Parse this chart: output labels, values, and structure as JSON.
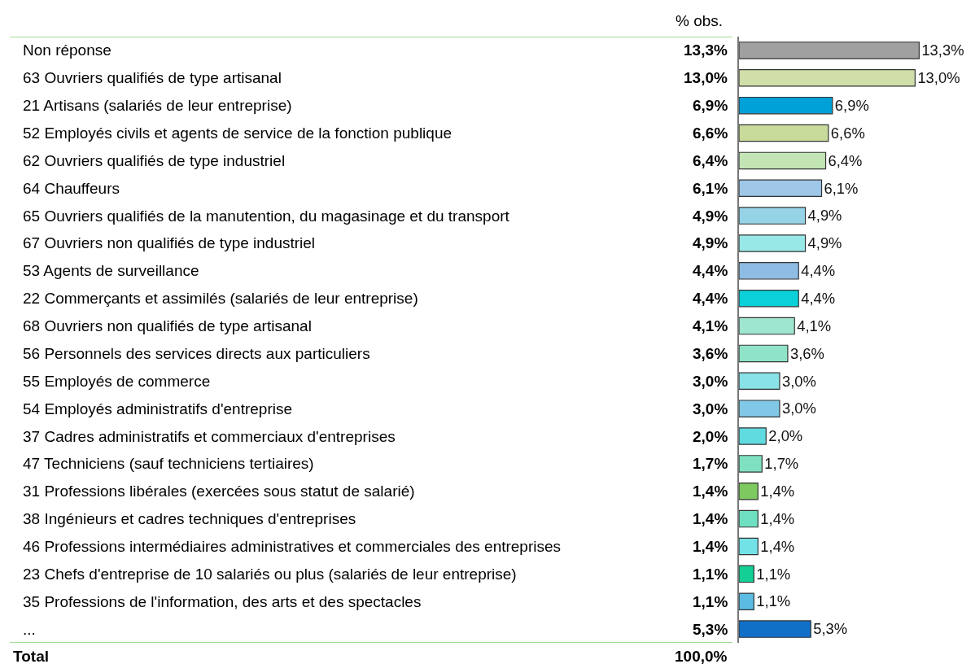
{
  "chart_data": {
    "type": "bar",
    "orientation": "horizontal",
    "categories": [
      "Non réponse",
      "63 Ouvriers qualifiés de type artisanal",
      "21 Artisans (salariés de leur entreprise)",
      "52 Employés civils et agents de service de la fonction publique",
      "62 Ouvriers qualifiés de type industriel",
      "64 Chauffeurs",
      "65 Ouvriers qualifiés de la manutention, du magasinage et du transport",
      "67 Ouvriers non qualifiés de type industriel",
      "53 Agents de surveillance",
      "22 Commerçants et assimilés (salariés de leur entreprise)",
      "68 Ouvriers non qualifiés de type artisanal",
      "56 Personnels des services directs aux particuliers",
      "55 Employés de commerce",
      "54 Employés administratifs d'entreprise",
      "37 Cadres administratifs et commerciaux d'entreprises",
      "47 Techniciens (sauf techniciens tertiaires)",
      "31 Professions libérales (exercées sous statut de salarié)",
      "38 Ingénieurs et cadres techniques d'entreprises",
      "46 Professions intermédiaires administratives et commerciales des entreprises",
      "23 Chefs d'entreprise de 10 salariés ou plus (salariés de leur entreprise)",
      "35 Professions de l'information, des arts et des spectacles",
      "..."
    ],
    "values": [
      13.3,
      13.0,
      6.9,
      6.6,
      6.4,
      6.1,
      4.9,
      4.9,
      4.4,
      4.4,
      4.1,
      3.6,
      3.0,
      3.0,
      2.0,
      1.7,
      1.4,
      1.4,
      1.4,
      1.1,
      1.1,
      5.3
    ],
    "value_labels": [
      "13,3%",
      "13,0%",
      "6,9%",
      "6,6%",
      "6,4%",
      "6,1%",
      "4,9%",
      "4,9%",
      "4,4%",
      "4,4%",
      "4,1%",
      "3,6%",
      "3,0%",
      "3,0%",
      "2,0%",
      "1,7%",
      "1,4%",
      "1,4%",
      "1,4%",
      "1,1%",
      "1,1%",
      "5,3%"
    ],
    "colors": [
      "#a0a0a0",
      "#d0dea9",
      "#00a0d8",
      "#c8db9a",
      "#c3e5b5",
      "#9fc7e8",
      "#96d3e6",
      "#99e8e8",
      "#8ebce2",
      "#0bd0d9",
      "#9fe6d0",
      "#8fe3c8",
      "#88e2e6",
      "#80c8e6",
      "#60dbe0",
      "#7ee0c0",
      "#7ec960",
      "#6edfc0",
      "#73e2e6",
      "#13cf96",
      "#5bbbe3",
      "#1070c8"
    ],
    "annotations": [
      "% obs.",
      "Total",
      "100,0%"
    ],
    "legend": false
  }
}
